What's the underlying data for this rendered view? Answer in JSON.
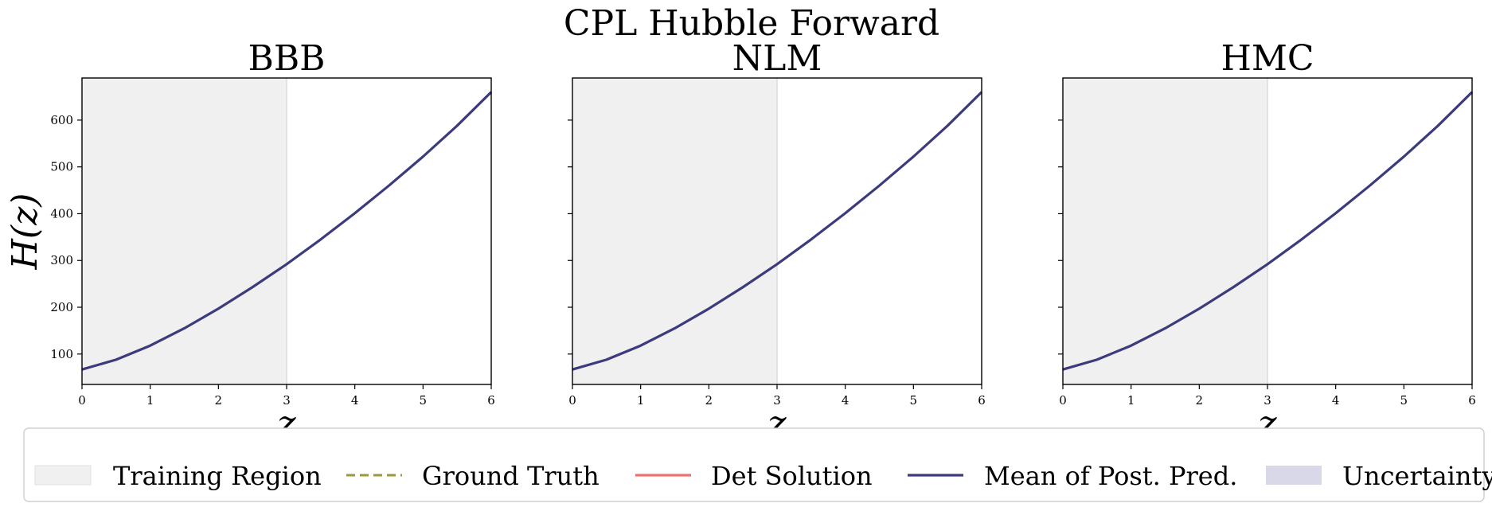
{
  "figure": {
    "title": "CPL Hubble Forward",
    "ylabel": "H(z)",
    "xlabel": "z"
  },
  "legend": [
    {
      "label": "Training Region",
      "kind": "patch",
      "color": "#f0f0f0"
    },
    {
      "label": "Ground Truth",
      "kind": "dashed-line",
      "color": "#9a9a3a"
    },
    {
      "label": "Det Solution",
      "kind": "line",
      "color": "#f07070"
    },
    {
      "label": "Mean of Post. Pred.",
      "kind": "line",
      "color": "#3b3b7d"
    },
    {
      "label": "Uncertainty",
      "kind": "patch",
      "color": "#d8d8e8"
    }
  ],
  "chart_data": [
    {
      "type": "line",
      "title": "BBB",
      "xlabel": "z",
      "ylabel": "H(z)",
      "xlim": [
        0,
        6
      ],
      "ylim": [
        35,
        690
      ],
      "xticks": [
        0,
        1,
        2,
        3,
        4,
        5,
        6
      ],
      "yticks": [
        100,
        200,
        300,
        400,
        500,
        600
      ],
      "training_region": [
        0,
        3
      ],
      "grid": false,
      "series": [
        {
          "name": "Mean of Post. Pred.",
          "color": "#3b3b7d",
          "x": [
            0,
            0.5,
            1,
            1.5,
            2,
            2.5,
            3,
            3.5,
            4,
            4.5,
            5,
            5.5,
            6
          ],
          "y": [
            67,
            88,
            118,
            155,
            197,
            243,
            292,
            345,
            401,
            460,
            522,
            588,
            660
          ]
        }
      ]
    },
    {
      "type": "line",
      "title": "NLM",
      "xlabel": "z",
      "ylabel": "",
      "xlim": [
        0,
        6
      ],
      "ylim": [
        35,
        690
      ],
      "xticks": [
        0,
        1,
        2,
        3,
        4,
        5,
        6
      ],
      "yticks": [
        100,
        200,
        300,
        400,
        500,
        600
      ],
      "training_region": [
        0,
        3
      ],
      "grid": false,
      "series": [
        {
          "name": "Mean of Post. Pred.",
          "color": "#3b3b7d",
          "x": [
            0,
            0.5,
            1,
            1.5,
            2,
            2.5,
            3,
            3.5,
            4,
            4.5,
            5,
            5.5,
            6
          ],
          "y": [
            67,
            88,
            118,
            155,
            197,
            243,
            292,
            345,
            401,
            460,
            522,
            588,
            660
          ]
        }
      ]
    },
    {
      "type": "line",
      "title": "HMC",
      "xlabel": "z",
      "ylabel": "",
      "xlim": [
        0,
        6
      ],
      "ylim": [
        35,
        690
      ],
      "xticks": [
        0,
        1,
        2,
        3,
        4,
        5,
        6
      ],
      "yticks": [
        100,
        200,
        300,
        400,
        500,
        600
      ],
      "training_region": [
        0,
        3
      ],
      "grid": false,
      "series": [
        {
          "name": "Mean of Post. Pred.",
          "color": "#3b3b7d",
          "x": [
            0,
            0.5,
            1,
            1.5,
            2,
            2.5,
            3,
            3.5,
            4,
            4.5,
            5,
            5.5,
            6
          ],
          "y": [
            67,
            88,
            118,
            155,
            197,
            243,
            292,
            345,
            401,
            460,
            522,
            588,
            660
          ]
        }
      ]
    }
  ]
}
